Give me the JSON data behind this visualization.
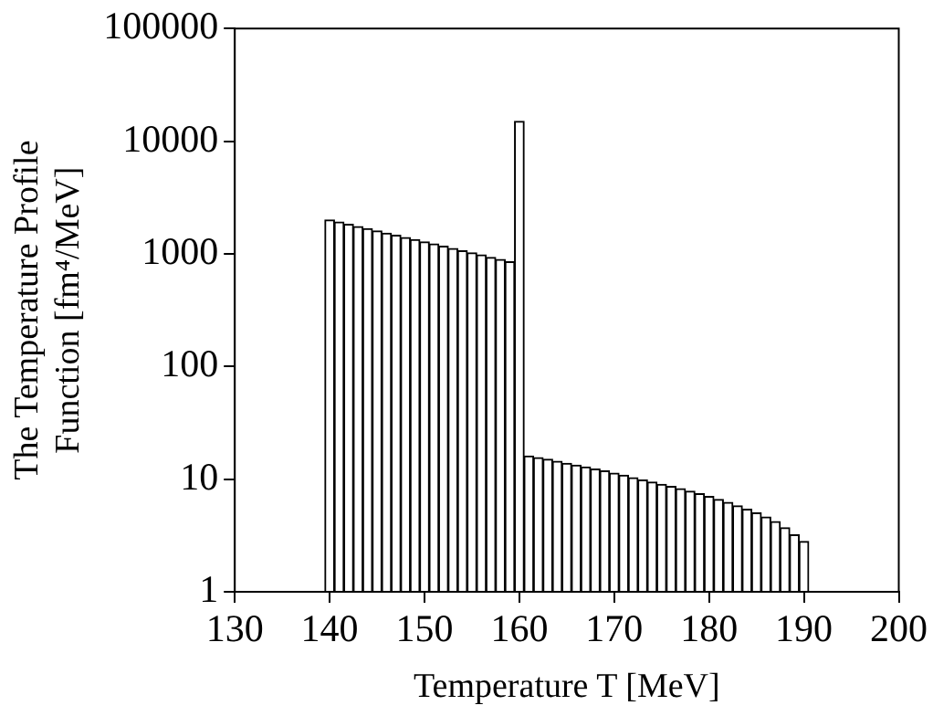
{
  "chart_data": {
    "type": "histogram",
    "xlabel": "Temperature T [MeV]",
    "ylabel": "The Temperature Profile\nFunction [fm⁴/MeV]",
    "bins": [
      139.5,
      140.5,
      141.5,
      142.5,
      143.5,
      144.5,
      145.5,
      146.5,
      147.5,
      148.5,
      149.5,
      150.5,
      151.5,
      152.5,
      153.5,
      154.5,
      155.5,
      156.5,
      157.5,
      158.5,
      159.5,
      160.5,
      161.5,
      162.5,
      163.5,
      164.5,
      165.5,
      166.5,
      167.5,
      168.5,
      169.5,
      170.5,
      171.5,
      172.5,
      173.5,
      174.5,
      175.5,
      176.5,
      177.5,
      178.5,
      179.5,
      180.5,
      181.5,
      182.5,
      183.5,
      184.5,
      185.5,
      186.5,
      187.5,
      188.5,
      189.5,
      190.5
    ],
    "values": [
      2000,
      1910,
      1825,
      1745,
      1670,
      1595,
      1525,
      1460,
      1395,
      1335,
      1275,
      1220,
      1165,
      1115,
      1065,
      1020,
      975,
      930,
      890,
      850,
      15000,
      16,
      15.5,
      15,
      14.4,
      13.8,
      13.3,
      12.8,
      12.3,
      11.8,
      11.3,
      10.8,
      10.3,
      9.8,
      9.4,
      9,
      8.6,
      8.2,
      7.8,
      7.4,
      7,
      6.6,
      6.2,
      5.8,
      5.4,
      5,
      4.6,
      4.2,
      3.7,
      3.2,
      2.8
    ],
    "color": "#ffffff",
    "xlim": [
      130,
      200
    ],
    "xticks": [
      130,
      140,
      150,
      160,
      170,
      180,
      190,
      200
    ],
    "ylim": [
      1,
      100000
    ],
    "yticks": [
      1,
      10,
      100,
      1000,
      10000,
      100000
    ],
    "log": "y",
    "grid": false,
    "legend": false
  }
}
